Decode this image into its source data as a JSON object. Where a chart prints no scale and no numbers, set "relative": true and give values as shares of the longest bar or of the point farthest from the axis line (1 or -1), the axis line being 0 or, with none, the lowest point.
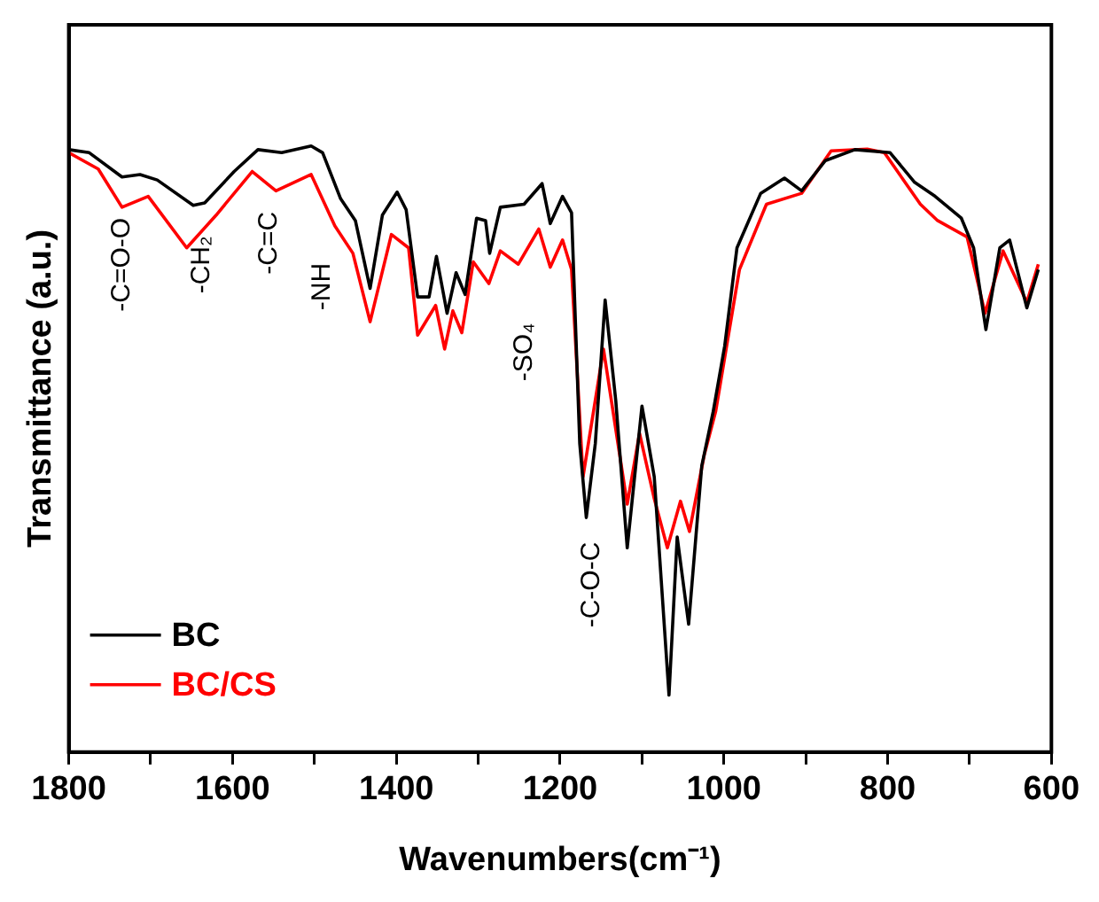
{
  "chart_data": {
    "type": "line",
    "xlabel": "Wavenumbers(cm⁻¹)",
    "ylabel": "Transmittance (a.u.)",
    "relative": true,
    "xlim": [
      1800,
      600
    ],
    "xticks": [
      1800,
      {
        "value": 1700,
        "label": null
      },
      1600,
      {
        "value": 1500,
        "label": null
      },
      1400,
      {
        "value": 1300,
        "label": null
      },
      1200,
      {
        "value": 1100,
        "label": null
      },
      1000,
      {
        "value": 900,
        "label": null
      },
      800,
      {
        "value": 700,
        "label": null
      },
      600
    ],
    "legend": "bottom left",
    "grid": false,
    "marker": "none",
    "line_style": "solid",
    "series": [
      {
        "name": "BC",
        "color": "#000000",
        "x": [
          1800,
          1775,
          1735,
          1713,
          1692,
          1648,
          1634,
          1598,
          1569,
          1540,
          1504,
          1490,
          1468,
          1450,
          1432,
          1417,
          1399,
          1388,
          1374,
          1360,
          1351,
          1338,
          1327,
          1316,
          1302,
          1291,
          1286,
          1273,
          1244,
          1222,
          1212,
          1197,
          1186,
          1176,
          1168,
          1157,
          1145,
          1132,
          1118,
          1100,
          1085,
          1067,
          1057,
          1043,
          1027,
          1013,
          999,
          984,
          955,
          926,
          905,
          876,
          840,
          797,
          767,
          742,
          710,
          695,
          680,
          663,
          651,
          630,
          616
        ],
        "values": [
          0.994,
          0.989,
          0.949,
          0.953,
          0.944,
          0.902,
          0.906,
          0.958,
          0.994,
          0.989,
          1.0,
          0.989,
          0.913,
          0.877,
          0.765,
          0.886,
          0.924,
          0.895,
          0.751,
          0.751,
          0.818,
          0.724,
          0.791,
          0.755,
          0.881,
          0.877,
          0.823,
          0.899,
          0.904,
          0.938,
          0.872,
          0.917,
          0.89,
          0.509,
          0.387,
          0.509,
          0.746,
          0.58,
          0.337,
          0.571,
          0.454,
          0.094,
          0.355,
          0.211,
          0.472,
          0.562,
          0.67,
          0.832,
          0.922,
          0.947,
          0.926,
          0.976,
          0.994,
          0.989,
          0.94,
          0.917,
          0.881,
          0.832,
          0.697,
          0.832,
          0.845,
          0.733,
          0.796
        ]
      },
      {
        "name": "BC/CS",
        "color": "#ff0000",
        "x": [
          1800,
          1764,
          1735,
          1703,
          1656,
          1620,
          1576,
          1547,
          1504,
          1475,
          1453,
          1432,
          1406,
          1385,
          1374,
          1352,
          1341,
          1331,
          1320,
          1306,
          1287,
          1273,
          1251,
          1226,
          1212,
          1197,
          1186,
          1172,
          1147,
          1118,
          1103,
          1085,
          1069,
          1053,
          1042,
          1024,
          1010,
          981,
          948,
          905,
          869,
          825,
          804,
          760,
          739,
          703,
          681,
          659,
          630,
          616
        ],
        "values": [
          0.989,
          0.962,
          0.899,
          0.917,
          0.832,
          0.886,
          0.958,
          0.926,
          0.953,
          0.868,
          0.823,
          0.71,
          0.854,
          0.832,
          0.688,
          0.737,
          0.665,
          0.728,
          0.692,
          0.809,
          0.773,
          0.827,
          0.805,
          0.863,
          0.8,
          0.845,
          0.796,
          0.454,
          0.665,
          0.409,
          0.526,
          0.418,
          0.337,
          0.414,
          0.364,
          0.49,
          0.562,
          0.796,
          0.904,
          0.922,
          0.992,
          0.995,
          0.989,
          0.904,
          0.877,
          0.85,
          0.724,
          0.827,
          0.742,
          0.805
        ]
      }
    ],
    "annotations": [
      "-C=O-O",
      "-CH₂",
      "-C=C",
      "-NH",
      "-SO₄",
      "-C-O-C"
    ]
  }
}
